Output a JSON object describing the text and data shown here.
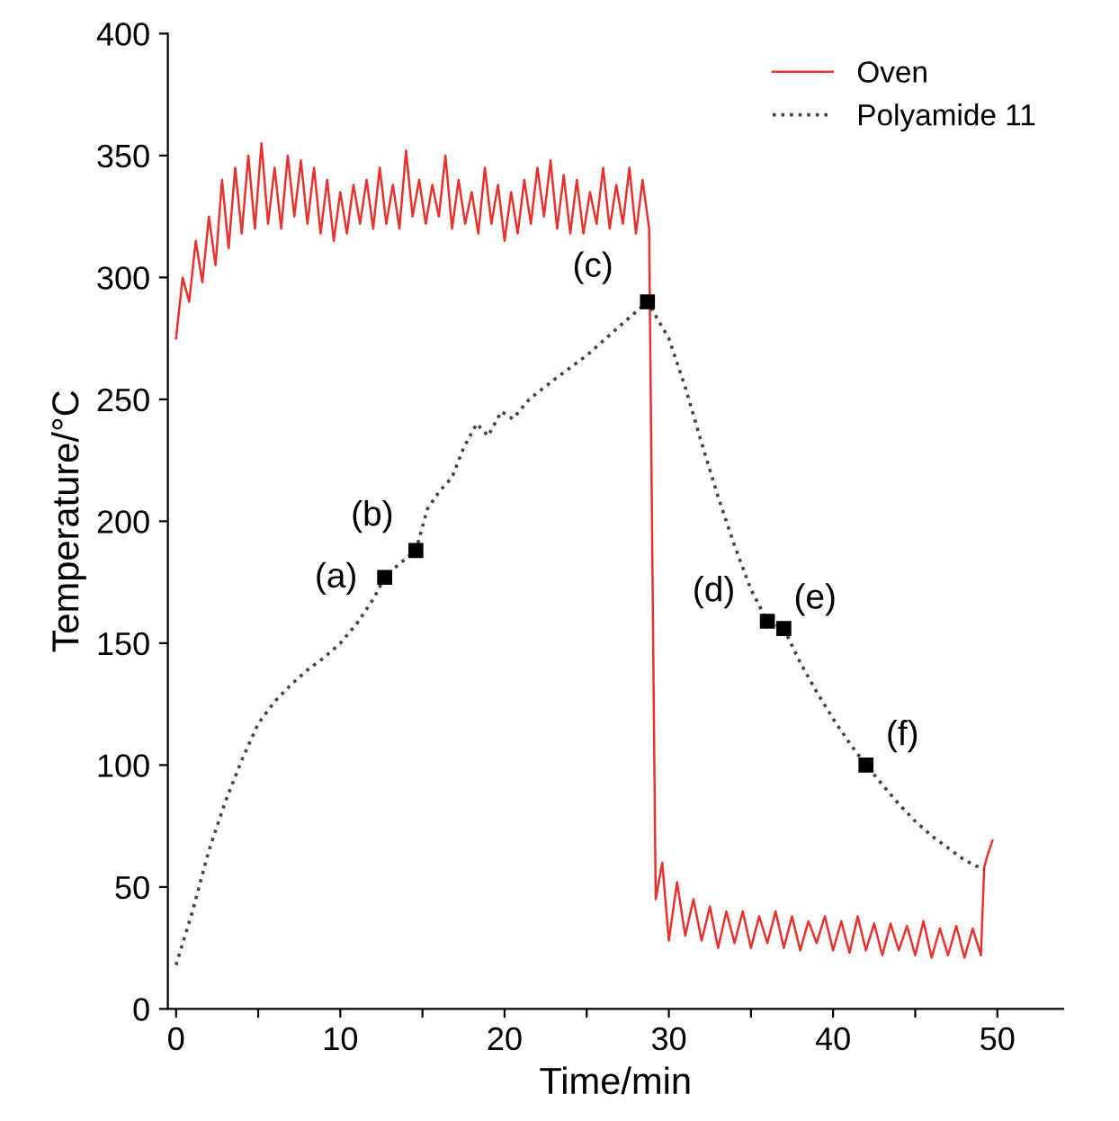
{
  "chart_data": {
    "type": "line",
    "xlabel": "Time/min",
    "ylabel": "Temperature/°C",
    "xlim": [
      -0.5,
      54
    ],
    "ylim": [
      0,
      400
    ],
    "xticks": [
      0,
      {
        "value": 5,
        "label": null
      },
      10,
      {
        "value": 15,
        "label": null
      },
      20,
      {
        "value": 25,
        "label": null
      },
      30,
      {
        "value": 35,
        "label": null
      },
      40,
      {
        "value": 45,
        "label": null
      },
      50
    ],
    "yticks": [
      0,
      50,
      100,
      150,
      200,
      250,
      300,
      350,
      400
    ],
    "grid": false,
    "legend": "top right",
    "series": [
      {
        "name": "Oven",
        "color": "#e8322d",
        "line_style": "solid",
        "marker": "none",
        "x": [
          0,
          0.4,
          0.8,
          1.2,
          1.6,
          2.0,
          2.4,
          2.8,
          3.2,
          3.6,
          4.0,
          4.4,
          4.8,
          5.2,
          5.6,
          6.0,
          6.4,
          6.8,
          7.2,
          7.6,
          8.0,
          8.4,
          8.8,
          9.2,
          9.6,
          10.0,
          10.4,
          10.8,
          11.2,
          11.6,
          12.0,
          12.4,
          12.8,
          13.2,
          13.6,
          14.0,
          14.4,
          14.8,
          15.2,
          15.6,
          16.0,
          16.4,
          16.8,
          17.2,
          17.6,
          18.0,
          18.4,
          18.8,
          19.2,
          19.6,
          20.0,
          20.4,
          20.8,
          21.2,
          21.6,
          22.0,
          22.4,
          22.8,
          23.2,
          23.6,
          24.0,
          24.4,
          24.8,
          25.2,
          25.6,
          26.0,
          26.4,
          26.8,
          27.2,
          27.6,
          28.0,
          28.4,
          28.8,
          29.2,
          29.6,
          30.0,
          30.5,
          31.0,
          31.5,
          32.0,
          32.5,
          33.0,
          33.5,
          34.0,
          34.5,
          35.0,
          35.5,
          36.0,
          36.5,
          37.0,
          37.5,
          38.0,
          38.5,
          39.0,
          39.5,
          40.0,
          40.5,
          41.0,
          41.5,
          42.0,
          42.5,
          43.0,
          43.5,
          44.0,
          44.5,
          45.0,
          45.5,
          46.0,
          46.5,
          47.0,
          47.5,
          48.0,
          48.5,
          49.0,
          49.2,
          49.4,
          49.7
        ],
        "values": [
          275,
          300,
          290,
          315,
          298,
          325,
          305,
          340,
          312,
          345,
          318,
          350,
          320,
          355,
          322,
          345,
          320,
          350,
          325,
          348,
          322,
          345,
          318,
          340,
          315,
          335,
          318,
          338,
          322,
          340,
          320,
          345,
          322,
          338,
          320,
          352,
          325,
          340,
          322,
          338,
          325,
          350,
          320,
          340,
          322,
          335,
          318,
          345,
          322,
          338,
          315,
          335,
          318,
          340,
          322,
          345,
          325,
          348,
          320,
          342,
          318,
          340,
          318,
          335,
          322,
          345,
          320,
          338,
          322,
          345,
          318,
          340,
          320,
          45,
          60,
          28,
          52,
          30,
          45,
          28,
          42,
          25,
          40,
          27,
          40,
          25,
          38,
          27,
          40,
          25,
          38,
          24,
          36,
          27,
          38,
          24,
          36,
          23,
          38,
          24,
          35,
          22,
          35,
          24,
          34,
          22,
          36,
          21,
          33,
          22,
          34,
          21,
          33,
          22,
          58,
          63,
          69
        ]
      },
      {
        "name": "Polyamide 11",
        "color": "#444444",
        "line_style": "dotted",
        "marker": "none",
        "x": [
          0,
          1,
          2,
          3,
          4,
          5,
          6,
          7,
          8,
          9,
          10,
          11,
          12,
          12.7,
          13.5,
          14.6,
          15.3,
          16.0,
          16.8,
          17.5,
          18.3,
          19.0,
          19.8,
          20.5,
          21.5,
          23,
          25,
          27,
          28.7,
          30,
          31,
          32,
          33,
          34,
          35,
          36,
          37,
          38,
          39,
          40,
          41,
          42,
          43,
          44,
          45,
          46,
          47,
          48,
          49.2
        ],
        "values": [
          18,
          40,
          65,
          85,
          102,
          117,
          126,
          133,
          139,
          144,
          150,
          158,
          168,
          177,
          182,
          188,
          205,
          212,
          218,
          230,
          240,
          235,
          245,
          242,
          250,
          258,
          268,
          280,
          290,
          275,
          255,
          232,
          210,
          190,
          172,
          159,
          156,
          142,
          130,
          119,
          109,
          100,
          92,
          84,
          77,
          71,
          66,
          61,
          57
        ]
      }
    ],
    "annotations": [
      {
        "text": "(a)",
        "x": 12.7,
        "y": 177
      },
      {
        "text": "(b)",
        "x": 14.6,
        "y": 188
      },
      {
        "text": "(c)",
        "x": 28.7,
        "y": 290
      },
      {
        "text": "(d)",
        "x": 36,
        "y": 159
      },
      {
        "text": "(e)",
        "x": 37,
        "y": 156
      },
      {
        "text": "(f)",
        "x": 42,
        "y": 100
      }
    ]
  }
}
